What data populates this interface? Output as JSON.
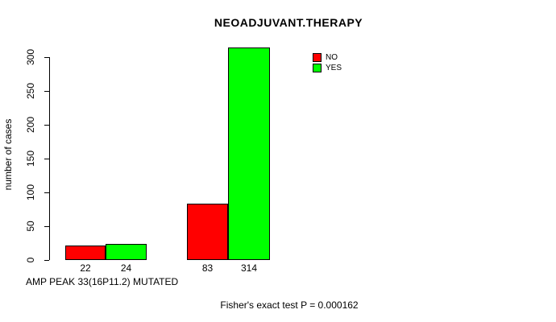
{
  "title": "NEOADJUVANT.THERAPY",
  "legend": {
    "items": [
      {
        "label": "NO",
        "color": "#FF0000"
      },
      {
        "label": "YES",
        "color": "#00FF00"
      }
    ]
  },
  "footer": {
    "annotation": "Fisher's exact test P = 0.000162"
  },
  "chart_data": {
    "type": "bar",
    "title": "NEOADJUVANT.THERAPY",
    "xlabel": "AMP PEAK 33(16P11.2) MUTATED",
    "ylabel": "number of cases",
    "ylim": [
      0,
      300
    ],
    "yticks": [
      0,
      50,
      100,
      150,
      200,
      250,
      300
    ],
    "grid": false,
    "legend_position": "top-right",
    "categories": [
      "",
      ""
    ],
    "series": [
      {
        "name": "NO",
        "color": "#FF0000",
        "values": [
          22,
          83
        ]
      },
      {
        "name": "YES",
        "color": "#00FF00",
        "values": [
          24,
          314
        ]
      }
    ],
    "bar_labels": [
      "22",
      "24",
      "83",
      "314"
    ],
    "annotation": "Fisher's exact test P = 0.000162"
  }
}
